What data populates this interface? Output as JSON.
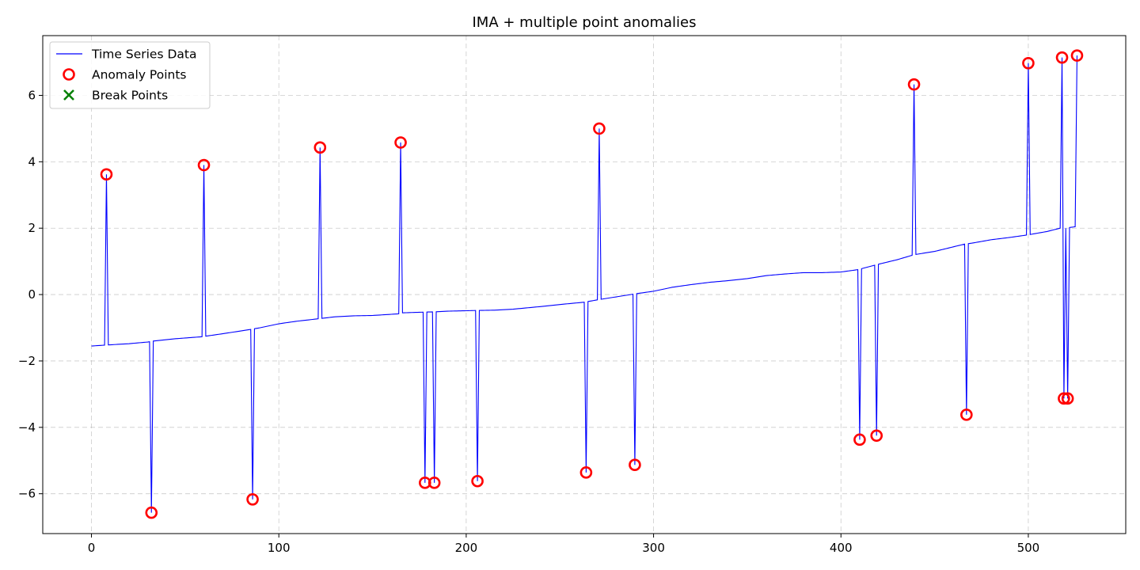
{
  "chart_data": {
    "type": "line",
    "title": "IMA + multiple point anomalies",
    "xlabel": "",
    "ylabel": "",
    "xlim": [
      -26,
      552
    ],
    "ylim": [
      -7.2,
      7.8
    ],
    "xticks": [
      0,
      100,
      200,
      300,
      400,
      500
    ],
    "yticks": [
      -6,
      -4,
      -2,
      0,
      2,
      4,
      6
    ],
    "xtick_labels": [
      "0",
      "100",
      "200",
      "300",
      "400",
      "500"
    ],
    "ytick_labels": [
      "−6",
      "−4",
      "−2",
      "0",
      "2",
      "4",
      "6"
    ],
    "grid": true,
    "legend_position": "top-left",
    "colors": {
      "line": "#0000ff",
      "anomaly": "#ff0000",
      "break": "#008000"
    },
    "legend": [
      {
        "label": "Time Series Data",
        "marker": "line"
      },
      {
        "label": "Anomaly Points",
        "marker": "circle"
      },
      {
        "label": "Break Points",
        "marker": "x"
      }
    ],
    "baseline": [
      [
        0,
        -1.55
      ],
      [
        8,
        -1.52
      ],
      [
        20,
        -1.48
      ],
      [
        30,
        -1.43
      ],
      [
        33,
        -1.4
      ],
      [
        45,
        -1.33
      ],
      [
        59,
        -1.27
      ],
      [
        70,
        -1.18
      ],
      [
        85,
        -1.05
      ],
      [
        90,
        -1.0
      ],
      [
        100,
        -0.88
      ],
      [
        110,
        -0.8
      ],
      [
        121,
        -0.73
      ],
      [
        130,
        -0.67
      ],
      [
        140,
        -0.64
      ],
      [
        150,
        -0.63
      ],
      [
        164,
        -0.58
      ],
      [
        166,
        -0.55
      ],
      [
        177,
        -0.53
      ],
      [
        183,
        -0.52
      ],
      [
        190,
        -0.5
      ],
      [
        205,
        -0.48
      ],
      [
        215,
        -0.47
      ],
      [
        225,
        -0.44
      ],
      [
        240,
        -0.36
      ],
      [
        250,
        -0.3
      ],
      [
        263,
        -0.23
      ],
      [
        271,
        -0.15
      ],
      [
        280,
        -0.07
      ],
      [
        290,
        0.02
      ],
      [
        300,
        0.1
      ],
      [
        310,
        0.22
      ],
      [
        320,
        0.3
      ],
      [
        330,
        0.37
      ],
      [
        340,
        0.42
      ],
      [
        350,
        0.48
      ],
      [
        360,
        0.57
      ],
      [
        370,
        0.62
      ],
      [
        380,
        0.66
      ],
      [
        390,
        0.66
      ],
      [
        400,
        0.68
      ],
      [
        409,
        0.75
      ],
      [
        419,
        0.9
      ],
      [
        430,
        1.05
      ],
      [
        439,
        1.2
      ],
      [
        450,
        1.3
      ],
      [
        466,
        1.52
      ],
      [
        470,
        1.55
      ],
      [
        480,
        1.65
      ],
      [
        490,
        1.72
      ],
      [
        500,
        1.8
      ],
      [
        510,
        1.9
      ],
      [
        517,
        2.0
      ],
      [
        520,
        2.0
      ],
      [
        522,
        2.02
      ],
      [
        526,
        2.05
      ]
    ],
    "anomalies": [
      {
        "x": 8,
        "y": 3.62
      },
      {
        "x": 32,
        "y": -6.57
      },
      {
        "x": 60,
        "y": 3.9
      },
      {
        "x": 86,
        "y": -6.17
      },
      {
        "x": 122,
        "y": 4.43
      },
      {
        "x": 165,
        "y": 4.58
      },
      {
        "x": 178,
        "y": -5.67
      },
      {
        "x": 183,
        "y": -5.67
      },
      {
        "x": 206,
        "y": -5.62
      },
      {
        "x": 264,
        "y": -5.36
      },
      {
        "x": 271,
        "y": 5.0
      },
      {
        "x": 290,
        "y": -5.13
      },
      {
        "x": 410,
        "y": -4.37
      },
      {
        "x": 419,
        "y": -4.25
      },
      {
        "x": 439,
        "y": 6.33
      },
      {
        "x": 467,
        "y": -3.62
      },
      {
        "x": 500,
        "y": 6.97
      },
      {
        "x": 518,
        "y": 7.14
      },
      {
        "x": 519,
        "y": -3.13
      },
      {
        "x": 521,
        "y": -3.13
      },
      {
        "x": 526,
        "y": 7.2
      }
    ],
    "break_points": []
  }
}
